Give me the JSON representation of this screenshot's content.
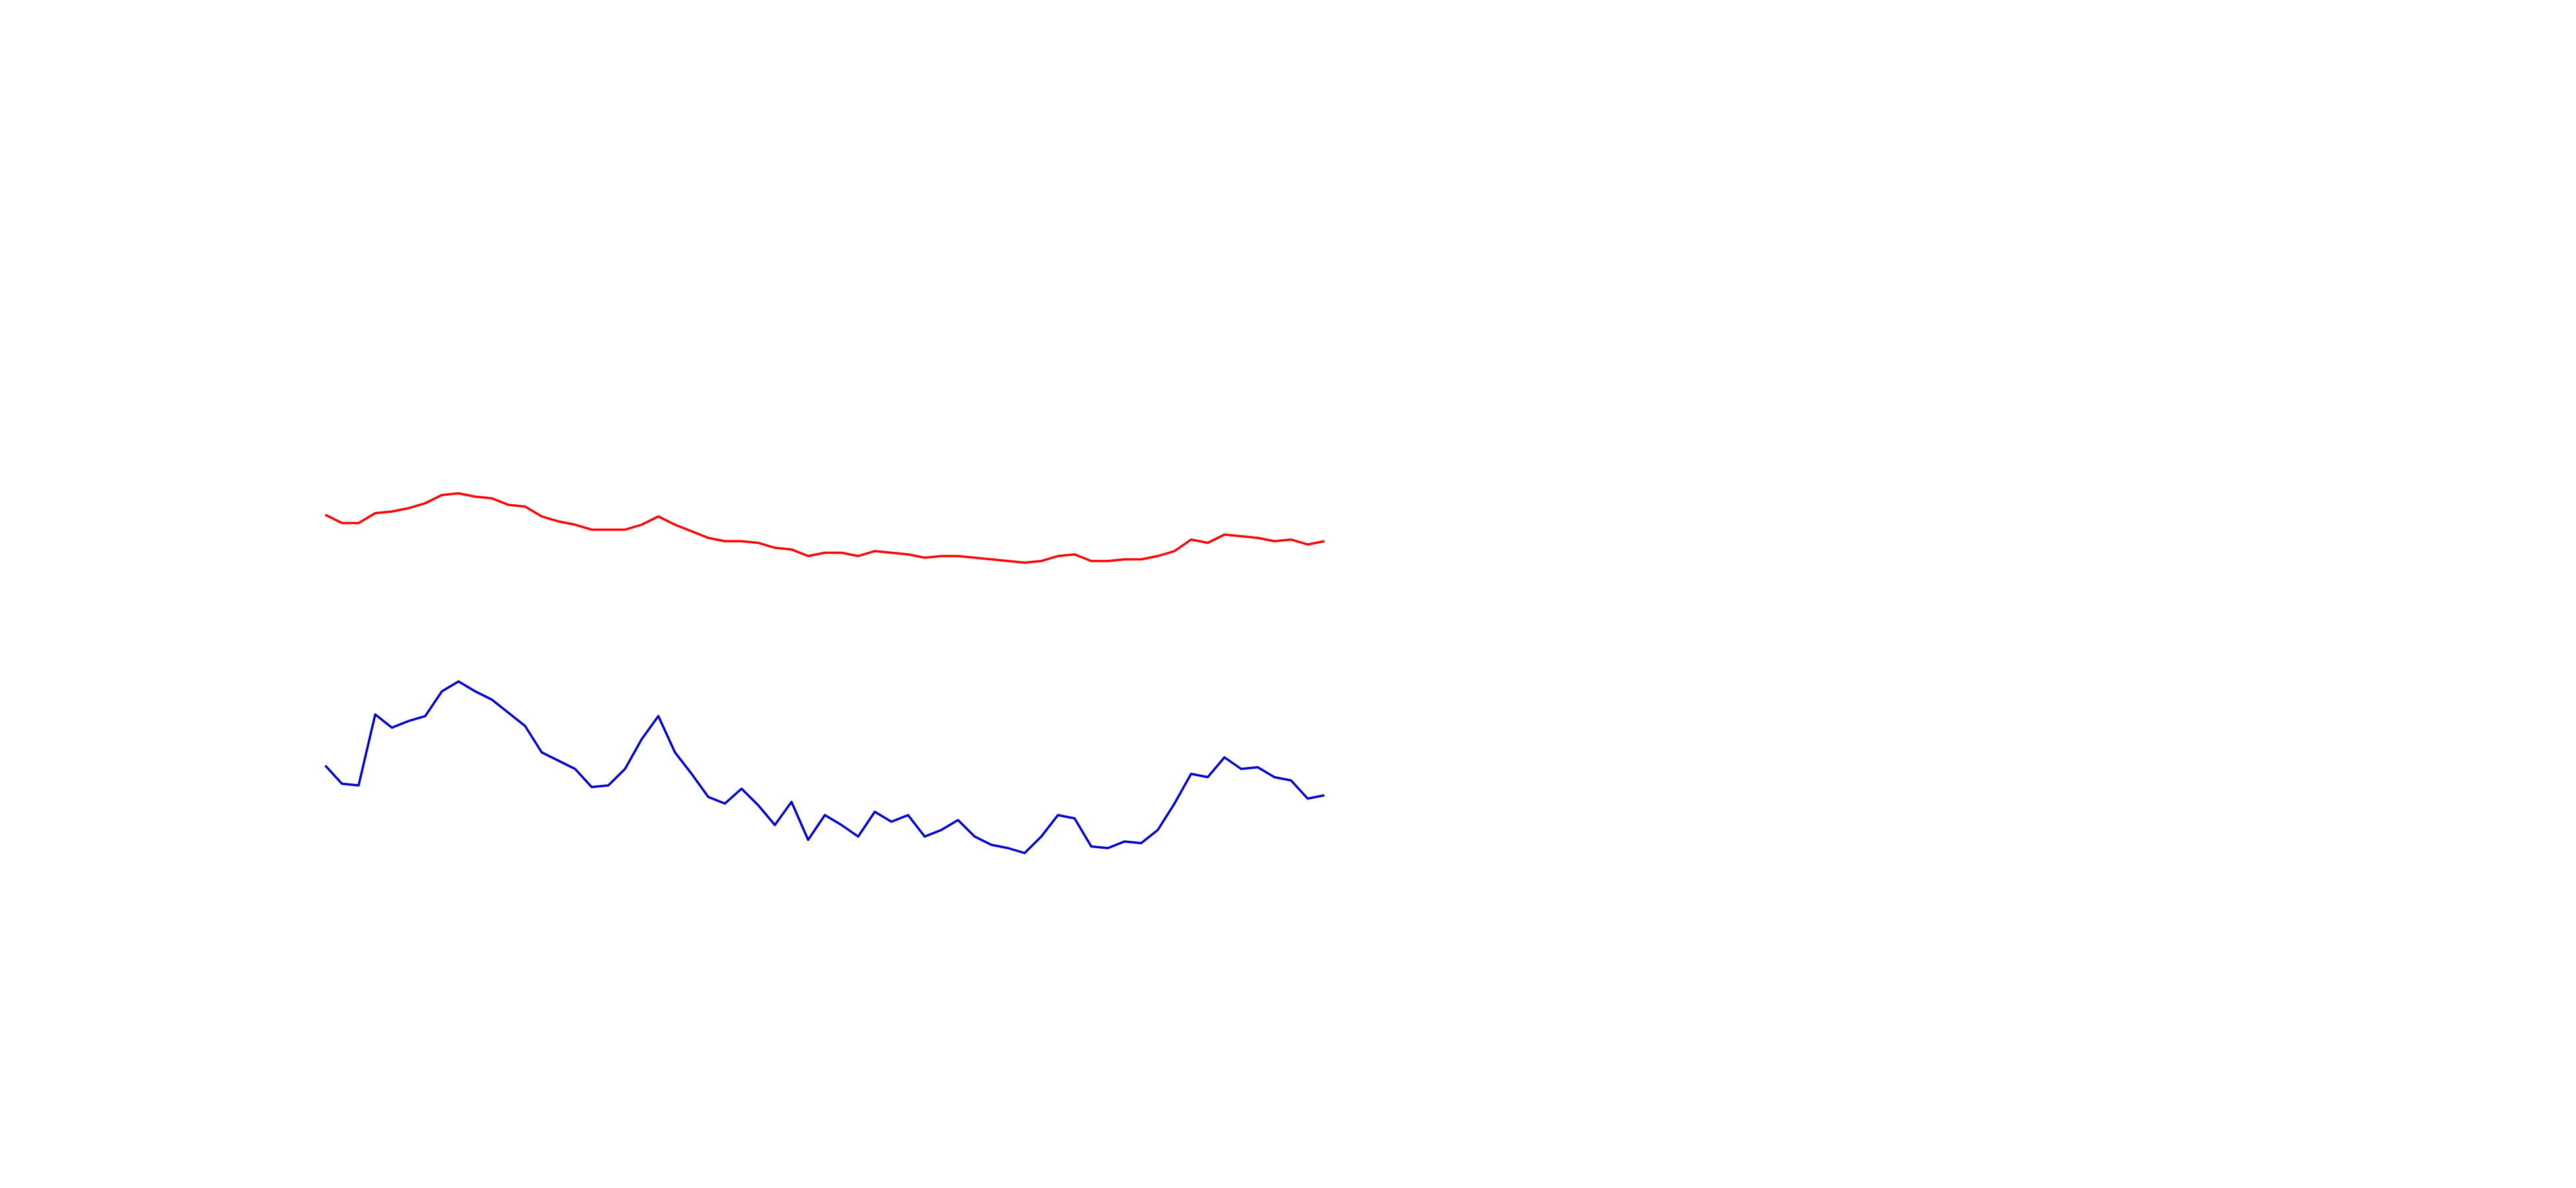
{
  "chart_data": {
    "type": "line",
    "ylim": [
      0,
      720
    ],
    "series": [
      {
        "color": "#ff0000",
        "values": [
          408,
          403,
          403,
          409,
          410,
          412,
          415,
          420,
          421,
          419,
          418,
          414,
          413,
          407,
          404,
          402,
          399,
          399,
          399,
          402,
          407,
          402,
          398,
          394,
          392,
          392,
          391,
          388,
          387,
          383,
          385,
          385,
          383,
          386,
          385,
          384,
          382,
          383,
          383,
          382,
          381,
          380,
          379,
          380,
          383,
          384,
          380,
          380,
          381,
          381,
          383,
          386,
          393,
          391,
          396,
          395,
          394,
          392,
          393,
          390,
          392
        ]
      },
      {
        "color": "#0000cc",
        "values": [
          256,
          245,
          244,
          287,
          279,
          283,
          286,
          301,
          307,
          301,
          296,
          288,
          280,
          264,
          259,
          254,
          243,
          244,
          254,
          272,
          286,
          264,
          251,
          237,
          233,
          242,
          232,
          220,
          234,
          211,
          226,
          220,
          213,
          228,
          222,
          226,
          213,
          217,
          223,
          213,
          208,
          206,
          203,
          213,
          226,
          224,
          207,
          206,
          210,
          209,
          217,
          233,
          251,
          249,
          261,
          254,
          255,
          249,
          247,
          236,
          238
        ]
      }
    ]
  }
}
